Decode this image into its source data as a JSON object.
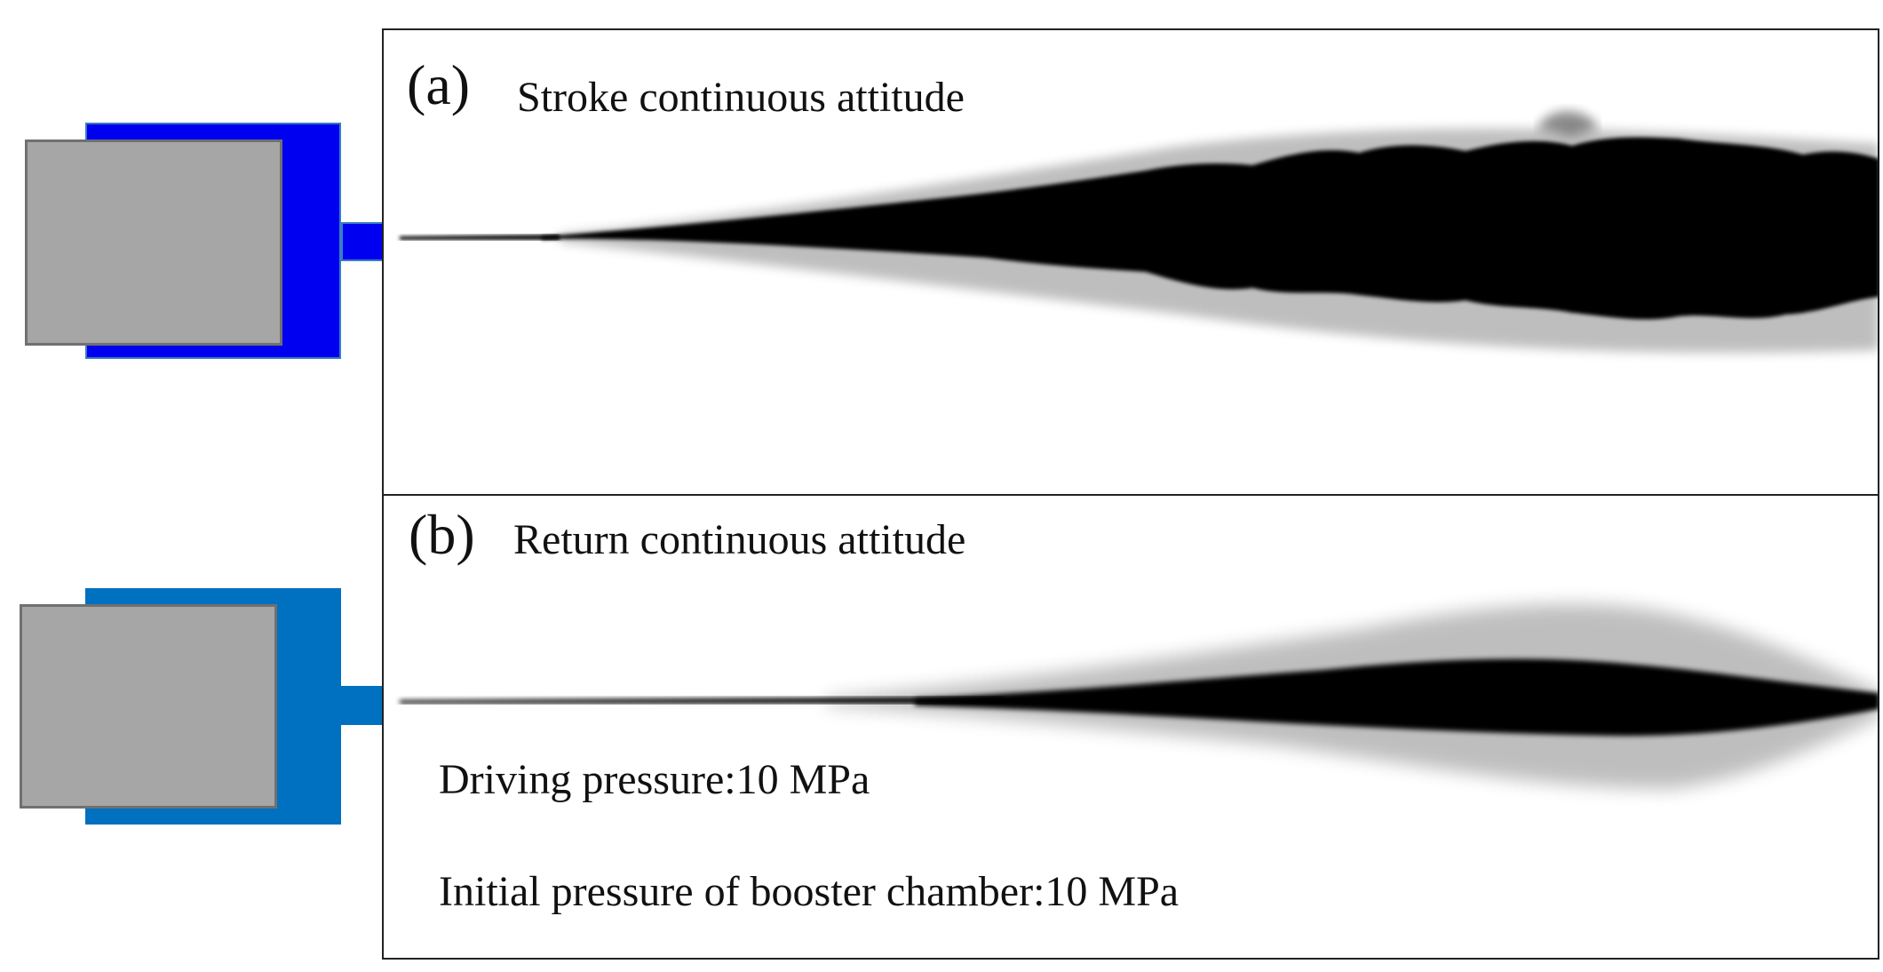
{
  "panel_a": {
    "label": "(a)",
    "title": "Stroke continuous attitude",
    "colors": {
      "body": "#0000f0",
      "piston": "#a6a6a6",
      "spray": "#000000"
    }
  },
  "panel_b": {
    "label": "(b)",
    "title": "Return continuous attitude",
    "colors": {
      "body": "#0070c0",
      "piston": "#a6a6a6",
      "spray": "#000000"
    }
  },
  "parameters": {
    "driving_pressure": "Driving pressure:10 MPa",
    "initial_pressure": "Initial pressure of booster chamber:10 MPa"
  }
}
